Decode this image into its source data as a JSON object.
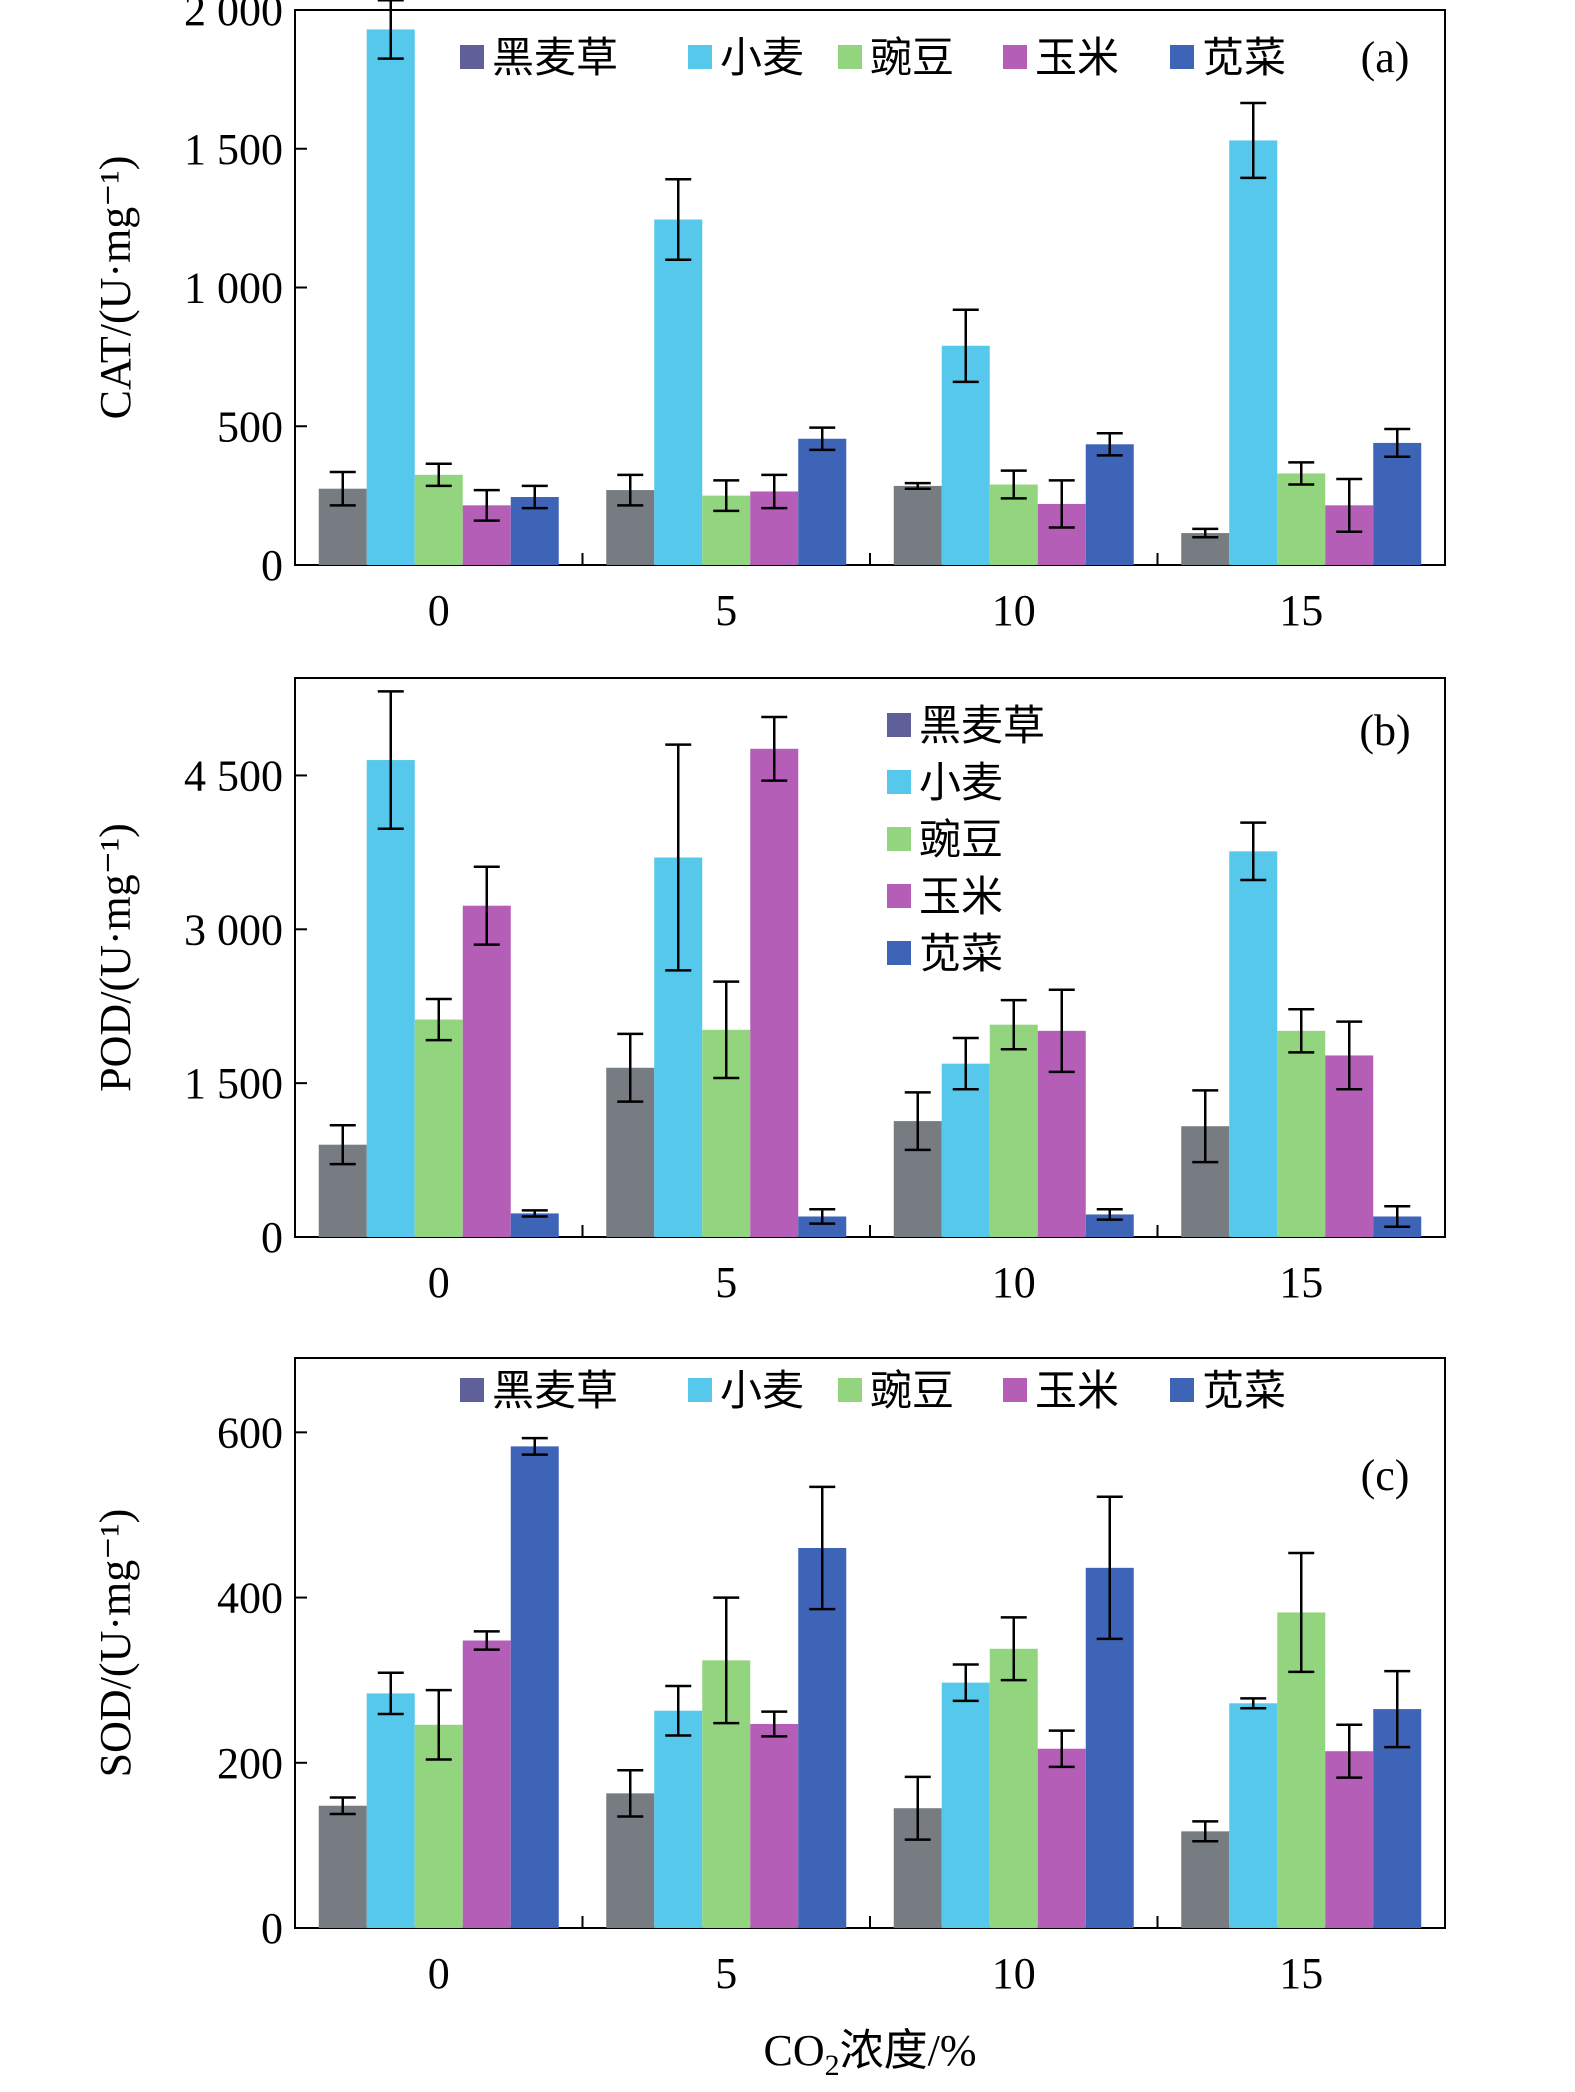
{
  "legend_labels": [
    "黑麦草",
    "小麦",
    "豌豆",
    "玉米",
    "苋菜"
  ],
  "series_colors": [
    "#777b82",
    "#56c8ec",
    "#92d57e",
    "#b45eb8",
    "#3e64b8"
  ],
  "legend_swatch_color_first": "#5f5f9a",
  "xlabel": {
    "prefix": "CO",
    "sub": "2",
    "suffix": "浓度/%"
  },
  "chart_data": [
    {
      "type": "bar",
      "panel": "(a)",
      "ylabel": "CAT/(U·mg⁻¹)",
      "categories": [
        "0",
        "5",
        "10",
        "15"
      ],
      "ylim": [
        0,
        2000
      ],
      "yticks": [
        0,
        500,
        1000,
        1500,
        2000
      ],
      "ytick_labels": [
        "0",
        "500",
        "1 000",
        "1 500",
        "2 000"
      ],
      "legend_position": "top",
      "series": [
        {
          "name": "黑麦草",
          "values": [
            275,
            270,
            285,
            115
          ],
          "errors": [
            60,
            55,
            10,
            15
          ]
        },
        {
          "name": "小麦",
          "values": [
            1930,
            1245,
            790,
            1530
          ],
          "errors": [
            105,
            145,
            130,
            135
          ]
        },
        {
          "name": "豌豆",
          "values": [
            325,
            250,
            290,
            330
          ],
          "errors": [
            40,
            55,
            50,
            40
          ]
        },
        {
          "name": "玉米",
          "values": [
            215,
            265,
            220,
            215
          ],
          "errors": [
            55,
            60,
            85,
            95
          ]
        },
        {
          "name": "苋菜",
          "values": [
            245,
            455,
            435,
            440
          ],
          "errors": [
            40,
            40,
            40,
            50
          ]
        }
      ]
    },
    {
      "type": "bar",
      "panel": "(b)",
      "ylabel": "POD/(U·mg⁻¹)",
      "categories": [
        "0",
        "5",
        "10",
        "15"
      ],
      "ylim": [
        0,
        5450
      ],
      "yticks": [
        0,
        1500,
        3000,
        4500
      ],
      "ytick_labels": [
        "0",
        "1 500",
        "3 000",
        "4 500"
      ],
      "legend_position": "top-center",
      "series": [
        {
          "name": "黑麦草",
          "values": [
            900,
            1650,
            1130,
            1080
          ],
          "errors": [
            190,
            330,
            280,
            350
          ]
        },
        {
          "name": "小麦",
          "values": [
            4650,
            3700,
            1690,
            3760
          ],
          "errors": [
            670,
            1100,
            250,
            280
          ]
        },
        {
          "name": "豌豆",
          "values": [
            2120,
            2020,
            2070,
            2010
          ],
          "errors": [
            200,
            470,
            240,
            210
          ]
        },
        {
          "name": "玉米",
          "values": [
            3230,
            4760,
            2010,
            1770
          ],
          "errors": [
            380,
            310,
            400,
            330
          ]
        },
        {
          "name": "苋菜",
          "values": [
            230,
            200,
            220,
            200
          ],
          "errors": [
            30,
            70,
            50,
            100
          ]
        }
      ]
    },
    {
      "type": "bar",
      "panel": "(c)",
      "ylabel": "SOD/(U·mg⁻¹)",
      "categories": [
        "0",
        "5",
        "10",
        "15"
      ],
      "ylim": [
        0,
        690
      ],
      "yticks": [
        0,
        200,
        400,
        600
      ],
      "ytick_labels": [
        "0",
        "200",
        "400",
        "600"
      ],
      "legend_position": "top",
      "series": [
        {
          "name": "黑麦草",
          "values": [
            148,
            163,
            145,
            117
          ],
          "errors": [
            10,
            28,
            38,
            12
          ]
        },
        {
          "name": "小麦",
          "values": [
            284,
            263,
            297,
            272
          ],
          "errors": [
            25,
            30,
            22,
            6
          ]
        },
        {
          "name": "豌豆",
          "values": [
            246,
            324,
            338,
            382
          ],
          "errors": [
            42,
            76,
            38,
            72
          ]
        },
        {
          "name": "玉米",
          "values": [
            348,
            247,
            217,
            214
          ],
          "errors": [
            11,
            15,
            22,
            32
          ]
        },
        {
          "name": "苋菜",
          "values": [
            583,
            460,
            436,
            265
          ],
          "errors": [
            10,
            74,
            86,
            46
          ]
        }
      ]
    }
  ]
}
